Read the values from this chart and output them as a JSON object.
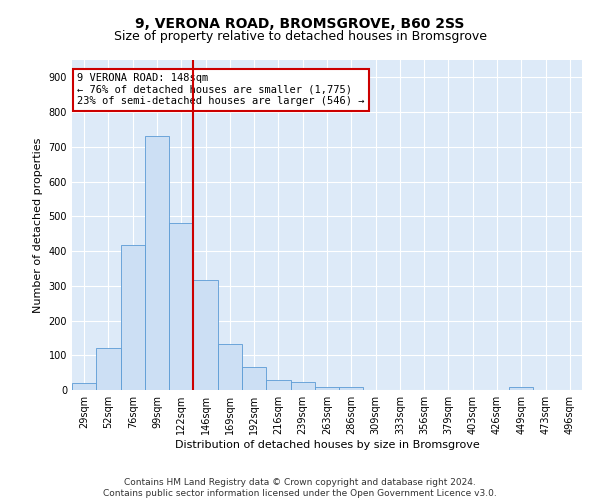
{
  "title": "9, VERONA ROAD, BROMSGROVE, B60 2SS",
  "subtitle": "Size of property relative to detached houses in Bromsgrove",
  "xlabel": "Distribution of detached houses by size in Bromsgrove",
  "ylabel": "Number of detached properties",
  "categories": [
    "29sqm",
    "52sqm",
    "76sqm",
    "99sqm",
    "122sqm",
    "146sqm",
    "169sqm",
    "192sqm",
    "216sqm",
    "239sqm",
    "263sqm",
    "286sqm",
    "309sqm",
    "333sqm",
    "356sqm",
    "379sqm",
    "403sqm",
    "426sqm",
    "449sqm",
    "473sqm",
    "496sqm"
  ],
  "values": [
    20,
    122,
    418,
    730,
    481,
    316,
    133,
    65,
    28,
    22,
    10,
    8,
    0,
    0,
    0,
    0,
    0,
    0,
    10,
    0,
    0
  ],
  "bar_color": "#ccdff4",
  "bar_edge_color": "#5b9bd5",
  "vline_x": 4.5,
  "vline_color": "#cc0000",
  "annotation_text": "9 VERONA ROAD: 148sqm\n← 76% of detached houses are smaller (1,775)\n23% of semi-detached houses are larger (546) →",
  "annotation_box_color": "#ffffff",
  "annotation_box_edge": "#cc0000",
  "ylim": [
    0,
    950
  ],
  "yticks": [
    0,
    100,
    200,
    300,
    400,
    500,
    600,
    700,
    800,
    900
  ],
  "background_color": "#ddeaf8",
  "footer": "Contains HM Land Registry data © Crown copyright and database right 2024.\nContains public sector information licensed under the Open Government Licence v3.0.",
  "title_fontsize": 10,
  "subtitle_fontsize": 9,
  "tick_fontsize": 7,
  "label_fontsize": 8,
  "footer_fontsize": 6.5
}
